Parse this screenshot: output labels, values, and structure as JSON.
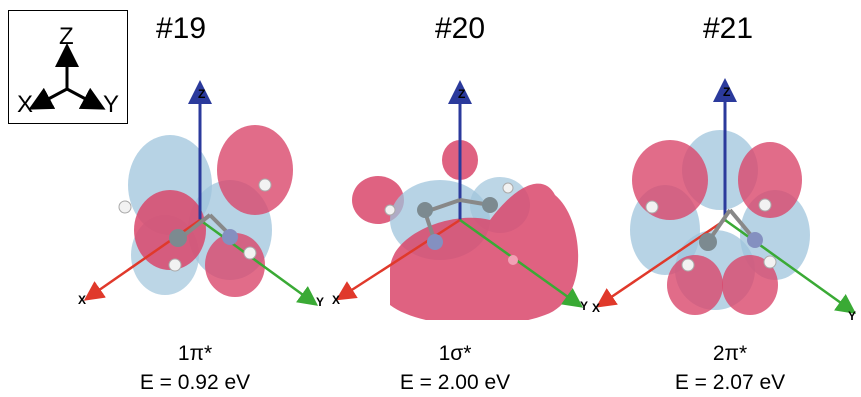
{
  "legend": {
    "z": "Z",
    "x": "X",
    "y": "Y"
  },
  "axis_tags": {
    "z": "Z",
    "x": "X",
    "y": "Y"
  },
  "panels": [
    {
      "title": "#19",
      "orbital": "1π*",
      "energy": "E = 0.92 eV"
    },
    {
      "title": "#20",
      "orbital": "1σ*",
      "energy": "E = 2.00 eV"
    },
    {
      "title": "#21",
      "orbital": "2π*",
      "energy": "E = 2.07 eV"
    }
  ],
  "colors": {
    "lobe_positive": "#d9476b",
    "lobe_negative": "#9fc4dc",
    "axis_x": "#e0392b",
    "axis_y": "#3aaa35",
    "axis_z": "#2b3a9c"
  }
}
